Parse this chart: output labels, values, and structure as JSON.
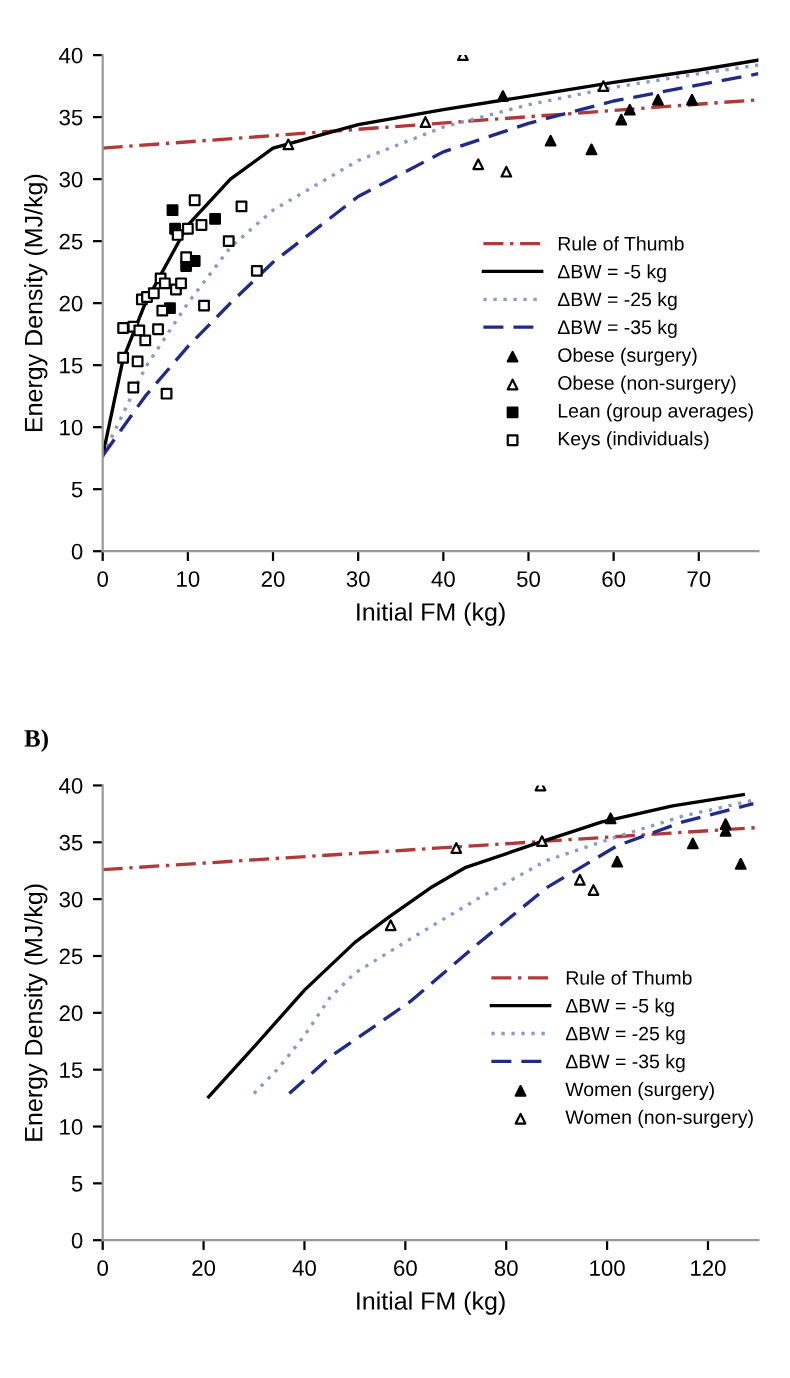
{
  "chart_data": [
    {
      "type": "line",
      "xlabel": "Initial FM (kg)",
      "ylabel": "Energy Density (MJ/kg)",
      "xlim": [
        0,
        77
      ],
      "ylim": [
        0,
        40
      ],
      "xticks": [
        0,
        10,
        20,
        30,
        40,
        50,
        60,
        70
      ],
      "yticks": [
        0,
        5,
        10,
        15,
        20,
        25,
        30,
        35,
        40
      ],
      "grid": false,
      "legend": "right",
      "series": [
        {
          "name": "Rule of Thumb",
          "color": "#b03a3a",
          "line_style": "dashdot",
          "marker": "none",
          "x": [
            0,
            77
          ],
          "values": [
            32.5,
            36.4
          ]
        },
        {
          "name": "ΔBW = -5 kg",
          "color": "#000000",
          "line_style": "solid",
          "marker": "none",
          "x": [
            0,
            2.4,
            5,
            10,
            15,
            20,
            30,
            40,
            50,
            60,
            70,
            77
          ],
          "values": [
            7.7,
            15.5,
            20,
            26.3,
            30,
            32.5,
            34.4,
            35.6,
            36.7,
            37.8,
            38.8,
            39.6
          ]
        },
        {
          "name": "ΔBW = -25 kg",
          "color": "#8a9ac8",
          "line_style": "dotted",
          "marker": "none",
          "x": [
            0,
            5,
            10,
            15,
            20,
            30,
            40,
            50,
            60,
            70,
            77
          ],
          "values": [
            7.7,
            14.8,
            20,
            24.5,
            27.5,
            31.5,
            34.2,
            36,
            37.4,
            38.5,
            39.2
          ]
        },
        {
          "name": "ΔBW = -35 kg",
          "color": "#1f2a8a",
          "line_style": "dashed",
          "marker": "none",
          "x": [
            0,
            5,
            10,
            15,
            20,
            30,
            40,
            50,
            60,
            70,
            77
          ],
          "values": [
            7.7,
            12.5,
            16.5,
            20,
            23.3,
            28.6,
            32.2,
            34.5,
            36.3,
            37.6,
            38.5
          ]
        },
        {
          "name": "Obese (surgery)",
          "type": "scatter",
          "color": "#000000",
          "marker": "triangle",
          "x": [
            47.0,
            52.6,
            57.4,
            60.9,
            61.9,
            65.2,
            69.2
          ],
          "values": [
            36.7,
            33.1,
            32.4,
            34.8,
            35.6,
            36.4,
            36.4
          ]
        },
        {
          "name": "Obese (non-surgery)",
          "type": "scatter",
          "color": "#ffffff",
          "marker": "triangle",
          "x": [
            21.8,
            42.3,
            37.9,
            44.1,
            47.4,
            58.8
          ],
          "values": [
            32.8,
            40.0,
            34.6,
            31.2,
            30.6,
            37.5
          ]
        },
        {
          "name": "Lean (group averages)",
          "type": "scatter",
          "color": "#000000",
          "marker": "square",
          "x": [
            8.2,
            8.5,
            9.8,
            10.8,
            7.9,
            13.2
          ],
          "values": [
            27.5,
            26.0,
            23.0,
            23.4,
            19.6,
            26.8
          ]
        },
        {
          "name": "Keys (individuals)",
          "type": "scatter",
          "color": "#ffffff",
          "marker": "square",
          "x": [
            2.4,
            2.4,
            3.6,
            3.6,
            4.1,
            4.3,
            4.6,
            5.0,
            5.2,
            6.0,
            6.5,
            6.8,
            7.0,
            7.3,
            7.5,
            8.6,
            8.8,
            9.2,
            9.8,
            10.0,
            10.8,
            11.6,
            11.9,
            14.8,
            16.3,
            18.1
          ],
          "values": [
            18.0,
            15.6,
            18.1,
            13.2,
            15.3,
            17.8,
            20.3,
            17.0,
            20.5,
            20.8,
            17.9,
            22.0,
            19.4,
            21.6,
            12.7,
            21.1,
            25.5,
            21.6,
            23.7,
            26.0,
            28.3,
            26.3,
            19.8,
            25.0,
            27.8,
            22.6
          ]
        }
      ]
    },
    {
      "type": "line",
      "title": "B)",
      "xlabel": "Initial FM (kg)",
      "ylabel": "Energy Density (MJ/kg)",
      "xlim": [
        0,
        130
      ],
      "ylim": [
        0,
        40
      ],
      "xticks": [
        0,
        20,
        40,
        60,
        80,
        100,
        120
      ],
      "yticks": [
        0,
        5,
        10,
        15,
        20,
        25,
        30,
        35,
        40
      ],
      "grid": false,
      "legend": "right",
      "series": [
        {
          "name": "Rule of Thumb",
          "color": "#b03a3a",
          "line_style": "dashdot",
          "marker": "none",
          "x": [
            0,
            130
          ],
          "values": [
            32.6,
            36.3
          ]
        },
        {
          "name": "ΔBW = -5 kg",
          "color": "#000000",
          "line_style": "solid",
          "marker": "none",
          "x": [
            21,
            30,
            40,
            50,
            57,
            65,
            72,
            86,
            99,
            113,
            127
          ],
          "values": [
            12.6,
            17,
            22,
            26.2,
            28.5,
            31,
            32.8,
            34.9,
            36.8,
            38.2,
            39.2
          ]
        },
        {
          "name": "ΔBW = -25 kg",
          "color": "#8a9ac8",
          "line_style": "dotted",
          "marker": "none",
          "x": [
            30,
            35,
            40,
            45,
            50,
            61,
            75,
            88,
            102,
            115,
            129
          ],
          "values": [
            12.9,
            15.2,
            18,
            21.3,
            23.5,
            26.5,
            30.2,
            33.4,
            35.5,
            37.3,
            38.7
          ]
        },
        {
          "name": "ΔBW = -35 kg",
          "color": "#1f2a8a",
          "line_style": "dashed",
          "marker": "none",
          "x": [
            37,
            45,
            61,
            75,
            88,
            102,
            115,
            129
          ],
          "values": [
            12.9,
            16.1,
            21,
            26.3,
            31,
            34.7,
            36.8,
            38.4
          ]
        },
        {
          "name": "Women (surgery)",
          "type": "scatter",
          "color": "#000000",
          "marker": "triangle",
          "x": [
            100.7,
            102,
            117,
            123.5,
            123.5,
            126.5
          ],
          "values": [
            37.1,
            33.3,
            34.9,
            36.6,
            36.0,
            33.1
          ]
        },
        {
          "name": "Women (non-surgery)",
          "type": "scatter",
          "color": "#ffffff",
          "marker": "triangle",
          "x": [
            86.8,
            70.1,
            87.1,
            57.1,
            94.6,
            97.3
          ],
          "values": [
            40.0,
            34.5,
            35.1,
            27.7,
            31.7,
            30.8
          ]
        }
      ]
    }
  ]
}
